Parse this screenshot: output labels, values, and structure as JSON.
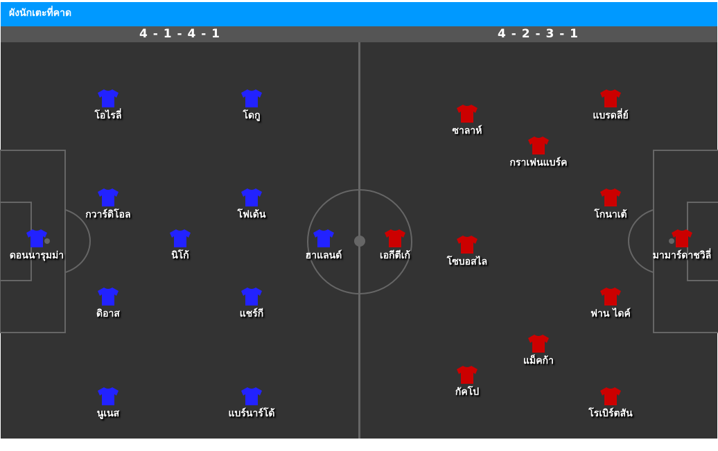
{
  "title": "ผังนักเตะที่คาด",
  "colors": {
    "header": "#0099ff",
    "formation_bar": "#555555",
    "pitch": "#333333",
    "home_shirt": "#2222ff",
    "away_shirt": "#cc0000"
  },
  "home": {
    "formation": "4 - 1 - 4 - 1",
    "players": [
      "โอไรลี่",
      "โดกู",
      "กวาร์ดิโอล",
      "โฟเด้น",
      "ดอนนารุมม่า",
      "นิโก้",
      "ฮาแลนด์",
      "ดิอาส",
      "แชร์กี",
      "นูเนส",
      "แบร์นาร์โด้"
    ]
  },
  "away": {
    "formation": "4 - 2 - 3 - 1",
    "players": [
      "เอกีตีเก้",
      "ซาลาห์",
      "แบรดลี่ย์",
      "กราเฟนแบร์ค",
      "โกนาเต้",
      "โซบอสไล",
      "มามาร์ดาชวิลี่",
      "ฟาน ไดค์",
      "แม็คก้า",
      "กัคโป",
      "โรเบิร์ตสัน"
    ]
  }
}
